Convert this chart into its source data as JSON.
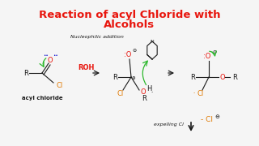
{
  "title_line1": "Reaction of acyl Chloride with",
  "title_line2": "Alcohols",
  "title_color": "#e8160e",
  "bg_color": "#f5f5f5",
  "title_fontsize": 9.5,
  "subtitle": "Nucleophilic addition",
  "black": "#1a1a1a",
  "red": "#e8160e",
  "green": "#2db82d",
  "orange": "#e07800",
  "blue": "#0000cc"
}
